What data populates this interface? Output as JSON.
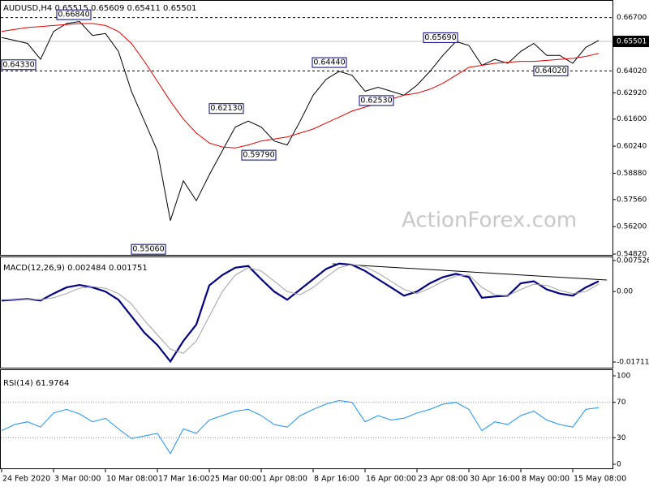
{
  "chart_data": [
    {
      "type": "line",
      "title": "AUDUSD,H4  0.65515 0.65609 0.65411 0.65501",
      "watermark": "ActionForex.com",
      "ylim": [
        0.547,
        0.675
      ],
      "yticks": [
        {
          "value": 0.6292,
          "label": "0.62920"
        },
        {
          "value": 0.616,
          "label": "0.61600"
        },
        {
          "value": 0.6024,
          "label": "0.60240"
        },
        {
          "value": 0.5888,
          "label": "0.58880"
        },
        {
          "value": 0.5756,
          "label": "0.57560"
        },
        {
          "value": 0.562,
          "label": "0.56200"
        },
        {
          "value": 0.5482,
          "label": "0.54820"
        }
      ],
      "levels": [
        {
          "value": 0.667,
          "label": "0.66700"
        },
        {
          "value": 0.6402,
          "label": "0.64020"
        }
      ],
      "last_price": {
        "value": 0.65501,
        "label": "0.65501"
      },
      "annotations": [
        {
          "value": 0.6684,
          "label": "0.66840"
        },
        {
          "value": 0.6433,
          "label": "0.64330"
        },
        {
          "value": 0.5506,
          "label": "0.55060"
        },
        {
          "value": 0.6213,
          "label": "0.62130"
        },
        {
          "value": 0.5979,
          "label": "0.59790"
        },
        {
          "value": 0.6444,
          "label": "0.64440"
        },
        {
          "value": 0.6253,
          "label": "0.62530"
        },
        {
          "value": 0.6569,
          "label": "0.65690"
        },
        {
          "value": 0.6402,
          "label": "0.64020"
        }
      ],
      "grid": false,
      "series": [
        {
          "name": "AUDUSD",
          "color": "#000000",
          "values": [
            0.657,
            0.6555,
            0.654,
            0.646,
            0.66,
            0.664,
            0.665,
            0.658,
            0.659,
            0.65,
            0.63,
            0.615,
            0.6,
            0.565,
            0.585,
            0.575,
            0.588,
            0.6,
            0.612,
            0.615,
            0.612,
            0.605,
            0.603,
            0.615,
            0.628,
            0.636,
            0.64,
            0.638,
            0.63,
            0.632,
            0.63,
            0.628,
            0.633,
            0.64,
            0.648,
            0.655,
            0.653,
            0.643,
            0.646,
            0.644,
            0.65,
            0.654,
            0.648,
            0.648,
            0.644,
            0.652,
            0.6555
          ]
        },
        {
          "name": "MA",
          "color": "#e00000",
          "values": [
            0.66,
            0.661,
            0.662,
            0.6625,
            0.663,
            0.6635,
            0.664,
            0.664,
            0.663,
            0.66,
            0.654,
            0.645,
            0.635,
            0.625,
            0.616,
            0.609,
            0.604,
            0.602,
            0.6015,
            0.603,
            0.605,
            0.606,
            0.607,
            0.609,
            0.611,
            0.614,
            0.617,
            0.62,
            0.622,
            0.624,
            0.626,
            0.628,
            0.629,
            0.631,
            0.634,
            0.638,
            0.642,
            0.643,
            0.644,
            0.6445,
            0.645,
            0.645,
            0.6455,
            0.646,
            0.6465,
            0.6475,
            0.649
          ]
        }
      ]
    },
    {
      "type": "line",
      "title": "MACD(12,26,9) 0.002484 0.001751",
      "ylim": [
        -0.017112,
        0.007526
      ],
      "yticks": [
        0.007526,
        {
          "value": 0,
          "label": "0.00"
        },
        -0.017112
      ],
      "grid": false,
      "series": [
        {
          "name": "MACD",
          "color": "#000080",
          "values": [
            -0.0022,
            -0.002,
            -0.0018,
            -0.0022,
            -0.0005,
            0.001,
            0.0016,
            0.001,
            0,
            -0.002,
            -0.006,
            -0.01,
            -0.013,
            -0.017,
            -0.012,
            -0.008,
            0.0015,
            0.004,
            0.0058,
            0.0062,
            0.003,
            0,
            -0.002,
            0.0005,
            0.003,
            0.0055,
            0.0068,
            0.0065,
            0.005,
            0.003,
            0.001,
            -0.001,
            0,
            0.002,
            0.0035,
            0.0043,
            0.0035,
            -0.0015,
            -0.0012,
            -0.001,
            0.002,
            0.0025,
            0.0005,
            -0.0005,
            -0.001,
            0.001,
            0.0025
          ]
        },
        {
          "name": "Signal",
          "color": "#a0a0a0",
          "values": [
            -0.002,
            -0.002,
            -0.0019,
            -0.002,
            -0.0015,
            -0.0005,
            0.0008,
            0.0012,
            0.0008,
            -0.0005,
            -0.003,
            -0.007,
            -0.0105,
            -0.014,
            -0.015,
            -0.012,
            -0.006,
            0,
            0.004,
            0.0058,
            0.005,
            0.0025,
            0,
            -0.0008,
            0.001,
            0.0035,
            0.0058,
            0.0066,
            0.006,
            0.0045,
            0.0025,
            0.0005,
            -0.0005,
            0.0008,
            0.0025,
            0.0038,
            0.004,
            0.001,
            -0.0008,
            -0.001,
            0.0005,
            0.0018,
            0.0015,
            0.0003,
            -0.0005,
            0,
            0.0018
          ]
        }
      ]
    },
    {
      "type": "line",
      "title": "RSI(14) 61.9764",
      "ylim": [
        0,
        100
      ],
      "yticks": [
        100,
        70,
        30,
        0
      ],
      "grid": true,
      "categories": [
        "24 Feb 2020",
        null,
        null,
        null,
        "3 Mar 00:00",
        null,
        null,
        null,
        "10 Mar 08:00",
        null,
        null,
        null,
        "17 Mar 16:00",
        null,
        null,
        null,
        "25 Mar 00:00",
        null,
        null,
        null,
        "1 Apr 08:00",
        null,
        null,
        null,
        "8 Apr 16:00",
        null,
        null,
        null,
        "16 Apr 00:00",
        null,
        null,
        null,
        "23 Apr 08:00",
        null,
        null,
        null,
        "30 Apr 16:00",
        null,
        null,
        null,
        "8 May 00:00",
        null,
        null,
        null,
        "15 May 08:00",
        null,
        null
      ],
      "series": [
        {
          "name": "RSI",
          "color": "#1e90ff",
          "values": [
            38,
            45,
            48,
            42,
            58,
            62,
            57,
            48,
            52,
            40,
            29,
            32,
            35,
            12,
            40,
            35,
            50,
            55,
            60,
            62,
            55,
            45,
            42,
            55,
            62,
            68,
            72,
            70,
            48,
            55,
            50,
            52,
            58,
            62,
            68,
            70,
            62,
            38,
            48,
            45,
            55,
            60,
            50,
            45,
            42,
            62,
            64
          ]
        }
      ]
    }
  ]
}
